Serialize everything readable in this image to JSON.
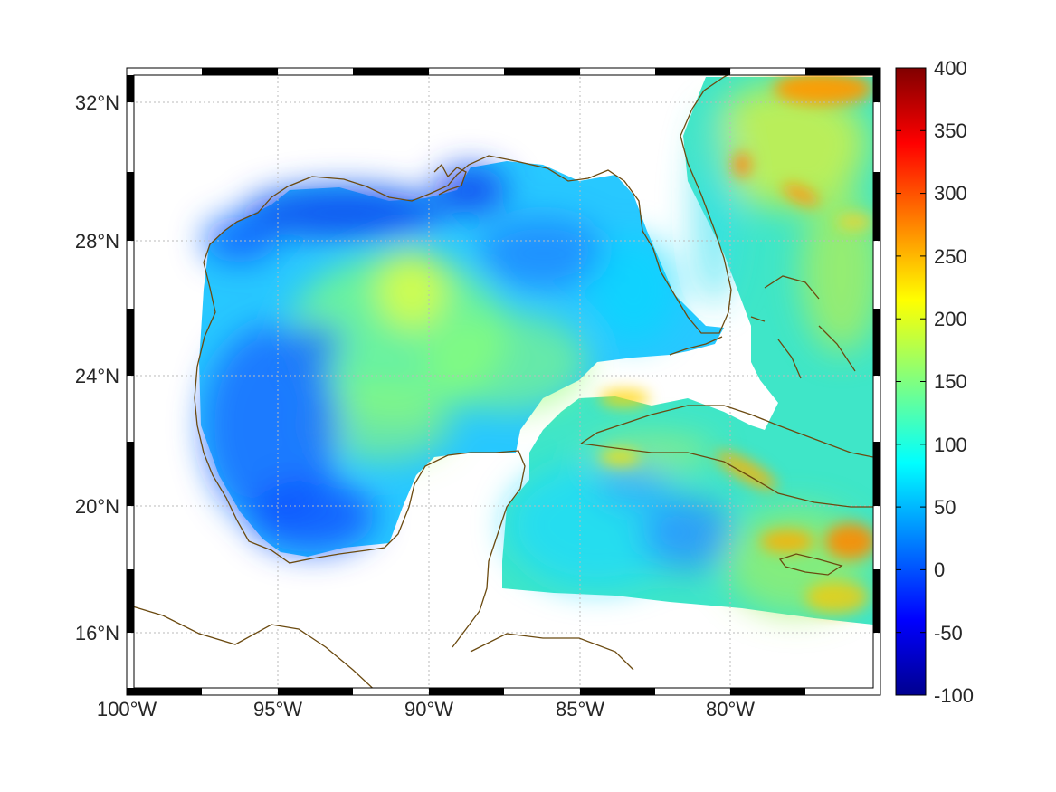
{
  "map": {
    "projection": "Mercator",
    "lon_range": [
      -100,
      -75
    ],
    "lat_range": [
      14.3,
      33
    ],
    "grid": true,
    "colormap": "jet",
    "coastline_color": "#6b4a10",
    "ocean_nodata_color": "#ffffff",
    "lon_ticks": [
      {
        "value": -100,
        "label": "100°W"
      },
      {
        "value": -95,
        "label": "95°W"
      },
      {
        "value": -90,
        "label": "90°W"
      },
      {
        "value": -85,
        "label": "85°W"
      },
      {
        "value": -80,
        "label": "80°W"
      }
    ],
    "lat_ticks": [
      {
        "value": 32,
        "label": "32°N"
      },
      {
        "value": 28,
        "label": "28°N"
      },
      {
        "value": 24,
        "label": "24°N"
      },
      {
        "value": 20,
        "label": "20°N"
      },
      {
        "value": 16,
        "label": "16°N"
      }
    ]
  },
  "colorbar": {
    "min": -100,
    "max": 400,
    "ticks": [
      {
        "value": 400,
        "label": "400"
      },
      {
        "value": 350,
        "label": "350"
      },
      {
        "value": 300,
        "label": "300"
      },
      {
        "value": 250,
        "label": "250"
      },
      {
        "value": 200,
        "label": "200"
      },
      {
        "value": 150,
        "label": "150"
      },
      {
        "value": 100,
        "label": "100"
      },
      {
        "value": 50,
        "label": "50"
      },
      {
        "value": 0,
        "label": "0"
      },
      {
        "value": -50,
        "label": "-50"
      },
      {
        "value": -100,
        "label": "-100"
      }
    ]
  }
}
